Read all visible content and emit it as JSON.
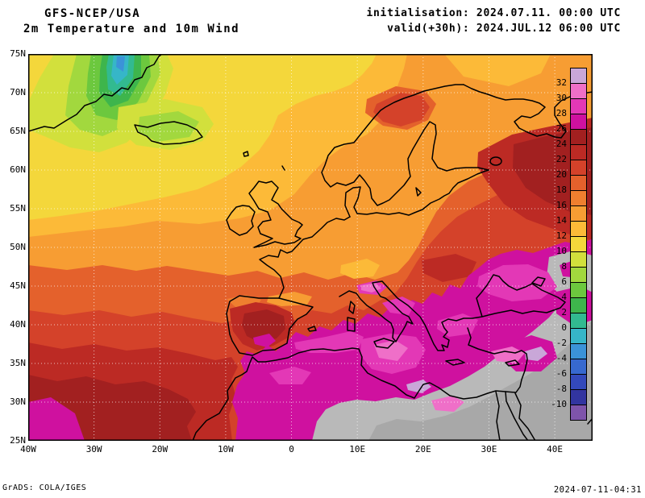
{
  "header": {
    "model": "GFS-NCEP/USA",
    "product": "2m Temperature and 10m Wind",
    "init_label": "initialisation: 2024.07.11. 00:00 UTC",
    "valid_label": "valid(+30h): 2024.JUL.12 06:00 UTC"
  },
  "map": {
    "lat_labels": [
      "75N",
      "70N",
      "65N",
      "60N",
      "55N",
      "50N",
      "45N",
      "40N",
      "35N",
      "30N",
      "25N"
    ],
    "lon_labels": [
      "40W",
      "30W",
      "20W",
      "10W",
      "0",
      "10E",
      "20E",
      "30E",
      "40E"
    ]
  },
  "colorbar": {
    "labels": [
      "32",
      "30",
      "28",
      "26",
      "24",
      "22",
      "20",
      "18",
      "16",
      "14",
      "12",
      "10",
      "8",
      "6",
      "4",
      "2",
      "0",
      "-2",
      "-4",
      "-6",
      "-8",
      "-10"
    ],
    "colors": [
      "#c9a7d8",
      "#ef6fc8",
      "#e338b6",
      "#cf119f",
      "#a22020",
      "#bc2a24",
      "#d4422a",
      "#e4612c",
      "#ef7f2f",
      "#f79d33",
      "#fcba38",
      "#f4d73b",
      "#d2e03c",
      "#a2d83e",
      "#6cc83e",
      "#3eb54c",
      "#32ba90",
      "#36b6c8",
      "#3b93d8",
      "#3769cf",
      "#3349bb",
      "#3235a0",
      "#7e54ab"
    ],
    "offscale_color": "#b9b9b9"
  },
  "footer": {
    "credit": "GrADS: COLA/IGES",
    "generated": "2024-07-11-04:31"
  }
}
